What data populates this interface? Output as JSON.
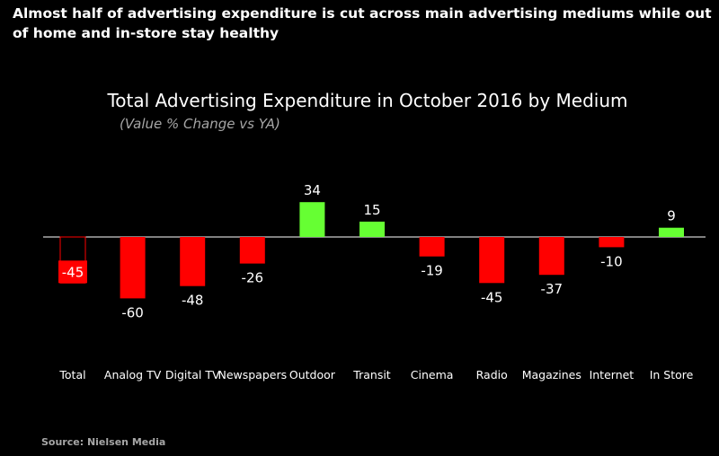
{
  "headline": "Almost half of advertising expenditure is cut across main advertising mediums while out of home and in-store stay healthy",
  "source": "Source: Nielsen Media",
  "colors": {
    "negative": "#ff0000",
    "positive": "#66ff33",
    "background": "#000000",
    "text": "#ffffff"
  },
  "chart_data": {
    "type": "bar",
    "title": "Total Advertising Expenditure in October 2016 by Medium",
    "subtitle": "(Value % Change vs YA)",
    "xlabel": "",
    "ylabel": "",
    "categories": [
      "Total",
      "Analog TV",
      "Digital TV",
      "Newspapers",
      "Outdoor",
      "Transit",
      "Cinema",
      "Radio",
      "Magazines",
      "Internet",
      "In Store"
    ],
    "values": [
      -45,
      -60,
      -48,
      -26,
      34,
      15,
      -19,
      -45,
      -37,
      -10,
      9
    ],
    "ylim": [
      -60,
      34
    ],
    "grid": false,
    "legend": "none"
  }
}
